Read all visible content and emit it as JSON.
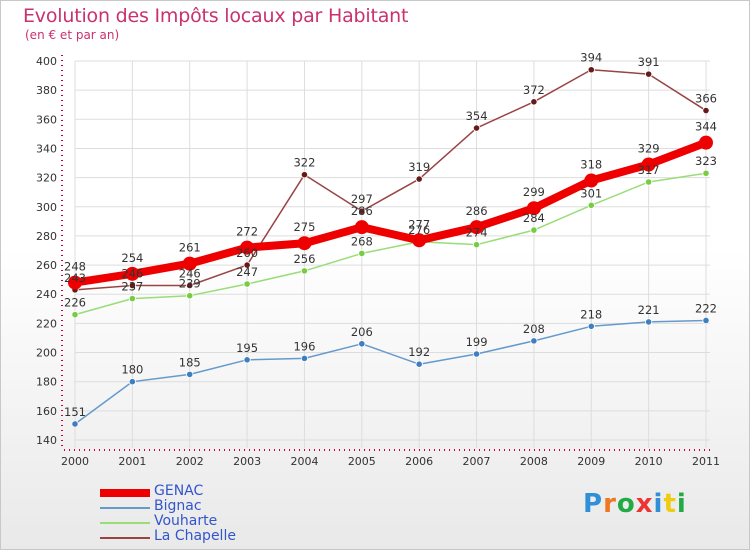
{
  "title": "Evolution des Impôts locaux par Habitant",
  "subtitle": "(en € et par an)",
  "logo_text": "Proxiti",
  "colors": {
    "title": "#c8326e",
    "axis": "#cc0033",
    "grid": "#dddddd",
    "text": "#333333"
  },
  "chart_data": {
    "type": "line",
    "title": "Evolution des Impôts locaux par Habitant",
    "subtitle": "(en € et par an)",
    "xlabel": "",
    "ylabel": "",
    "x": [
      "2000",
      "2001",
      "2002",
      "2003",
      "2004",
      "2005",
      "2006",
      "2007",
      "2008",
      "2009",
      "2010",
      "2011"
    ],
    "ylim": [
      140,
      400
    ],
    "yticks": [
      140,
      160,
      180,
      200,
      220,
      240,
      260,
      280,
      300,
      320,
      340,
      360,
      380,
      400
    ],
    "ytick_labels": [
      "140",
      "160",
      "180",
      "200",
      "220",
      "240",
      "260",
      "280",
      "300",
      "320",
      "340",
      "360",
      "380",
      "400"
    ],
    "grid": true,
    "legend_position": "bottom-left",
    "series": [
      {
        "name": "GENAC",
        "color": "#ee0000",
        "marker_color": "#ee0000",
        "emphasis": true,
        "values": [
          248,
          254,
          261,
          272,
          275,
          286,
          277,
          286,
          299,
          318,
          329,
          344
        ],
        "labels": [
          "248",
          "254",
          "261",
          "272",
          "275",
          "286",
          "277",
          "286",
          "299",
          "318",
          "329",
          "344"
        ]
      },
      {
        "name": "Bignac",
        "color": "#6699cc",
        "marker_color": "#3f7fbf",
        "emphasis": false,
        "values": [
          151,
          180,
          185,
          195,
          196,
          206,
          192,
          199,
          208,
          218,
          221,
          222
        ],
        "labels": [
          "151",
          "180",
          "185",
          "195",
          "196",
          "206",
          "192",
          "199",
          "208",
          "218",
          "221",
          "222"
        ]
      },
      {
        "name": "Vouharte",
        "color": "#99dd77",
        "marker_color": "#77cc44",
        "emphasis": false,
        "values": [
          226,
          237,
          239,
          247,
          256,
          268,
          276,
          274,
          284,
          301,
          317,
          323
        ],
        "labels": [
          "226",
          "237",
          "239",
          "247",
          "256",
          "268",
          "276",
          "274",
          "284",
          "301",
          "317",
          "323"
        ]
      },
      {
        "name": "La Chapelle",
        "color": "#994444",
        "marker_color": "#661a1a",
        "emphasis": false,
        "values": [
          243,
          246,
          246,
          260,
          322,
          297,
          319,
          354,
          372,
          394,
          391,
          366
        ],
        "labels": [
          "243",
          "246",
          "246",
          "260",
          "322",
          "297",
          "319",
          "354",
          "372",
          "394",
          "391",
          "366"
        ]
      }
    ]
  }
}
